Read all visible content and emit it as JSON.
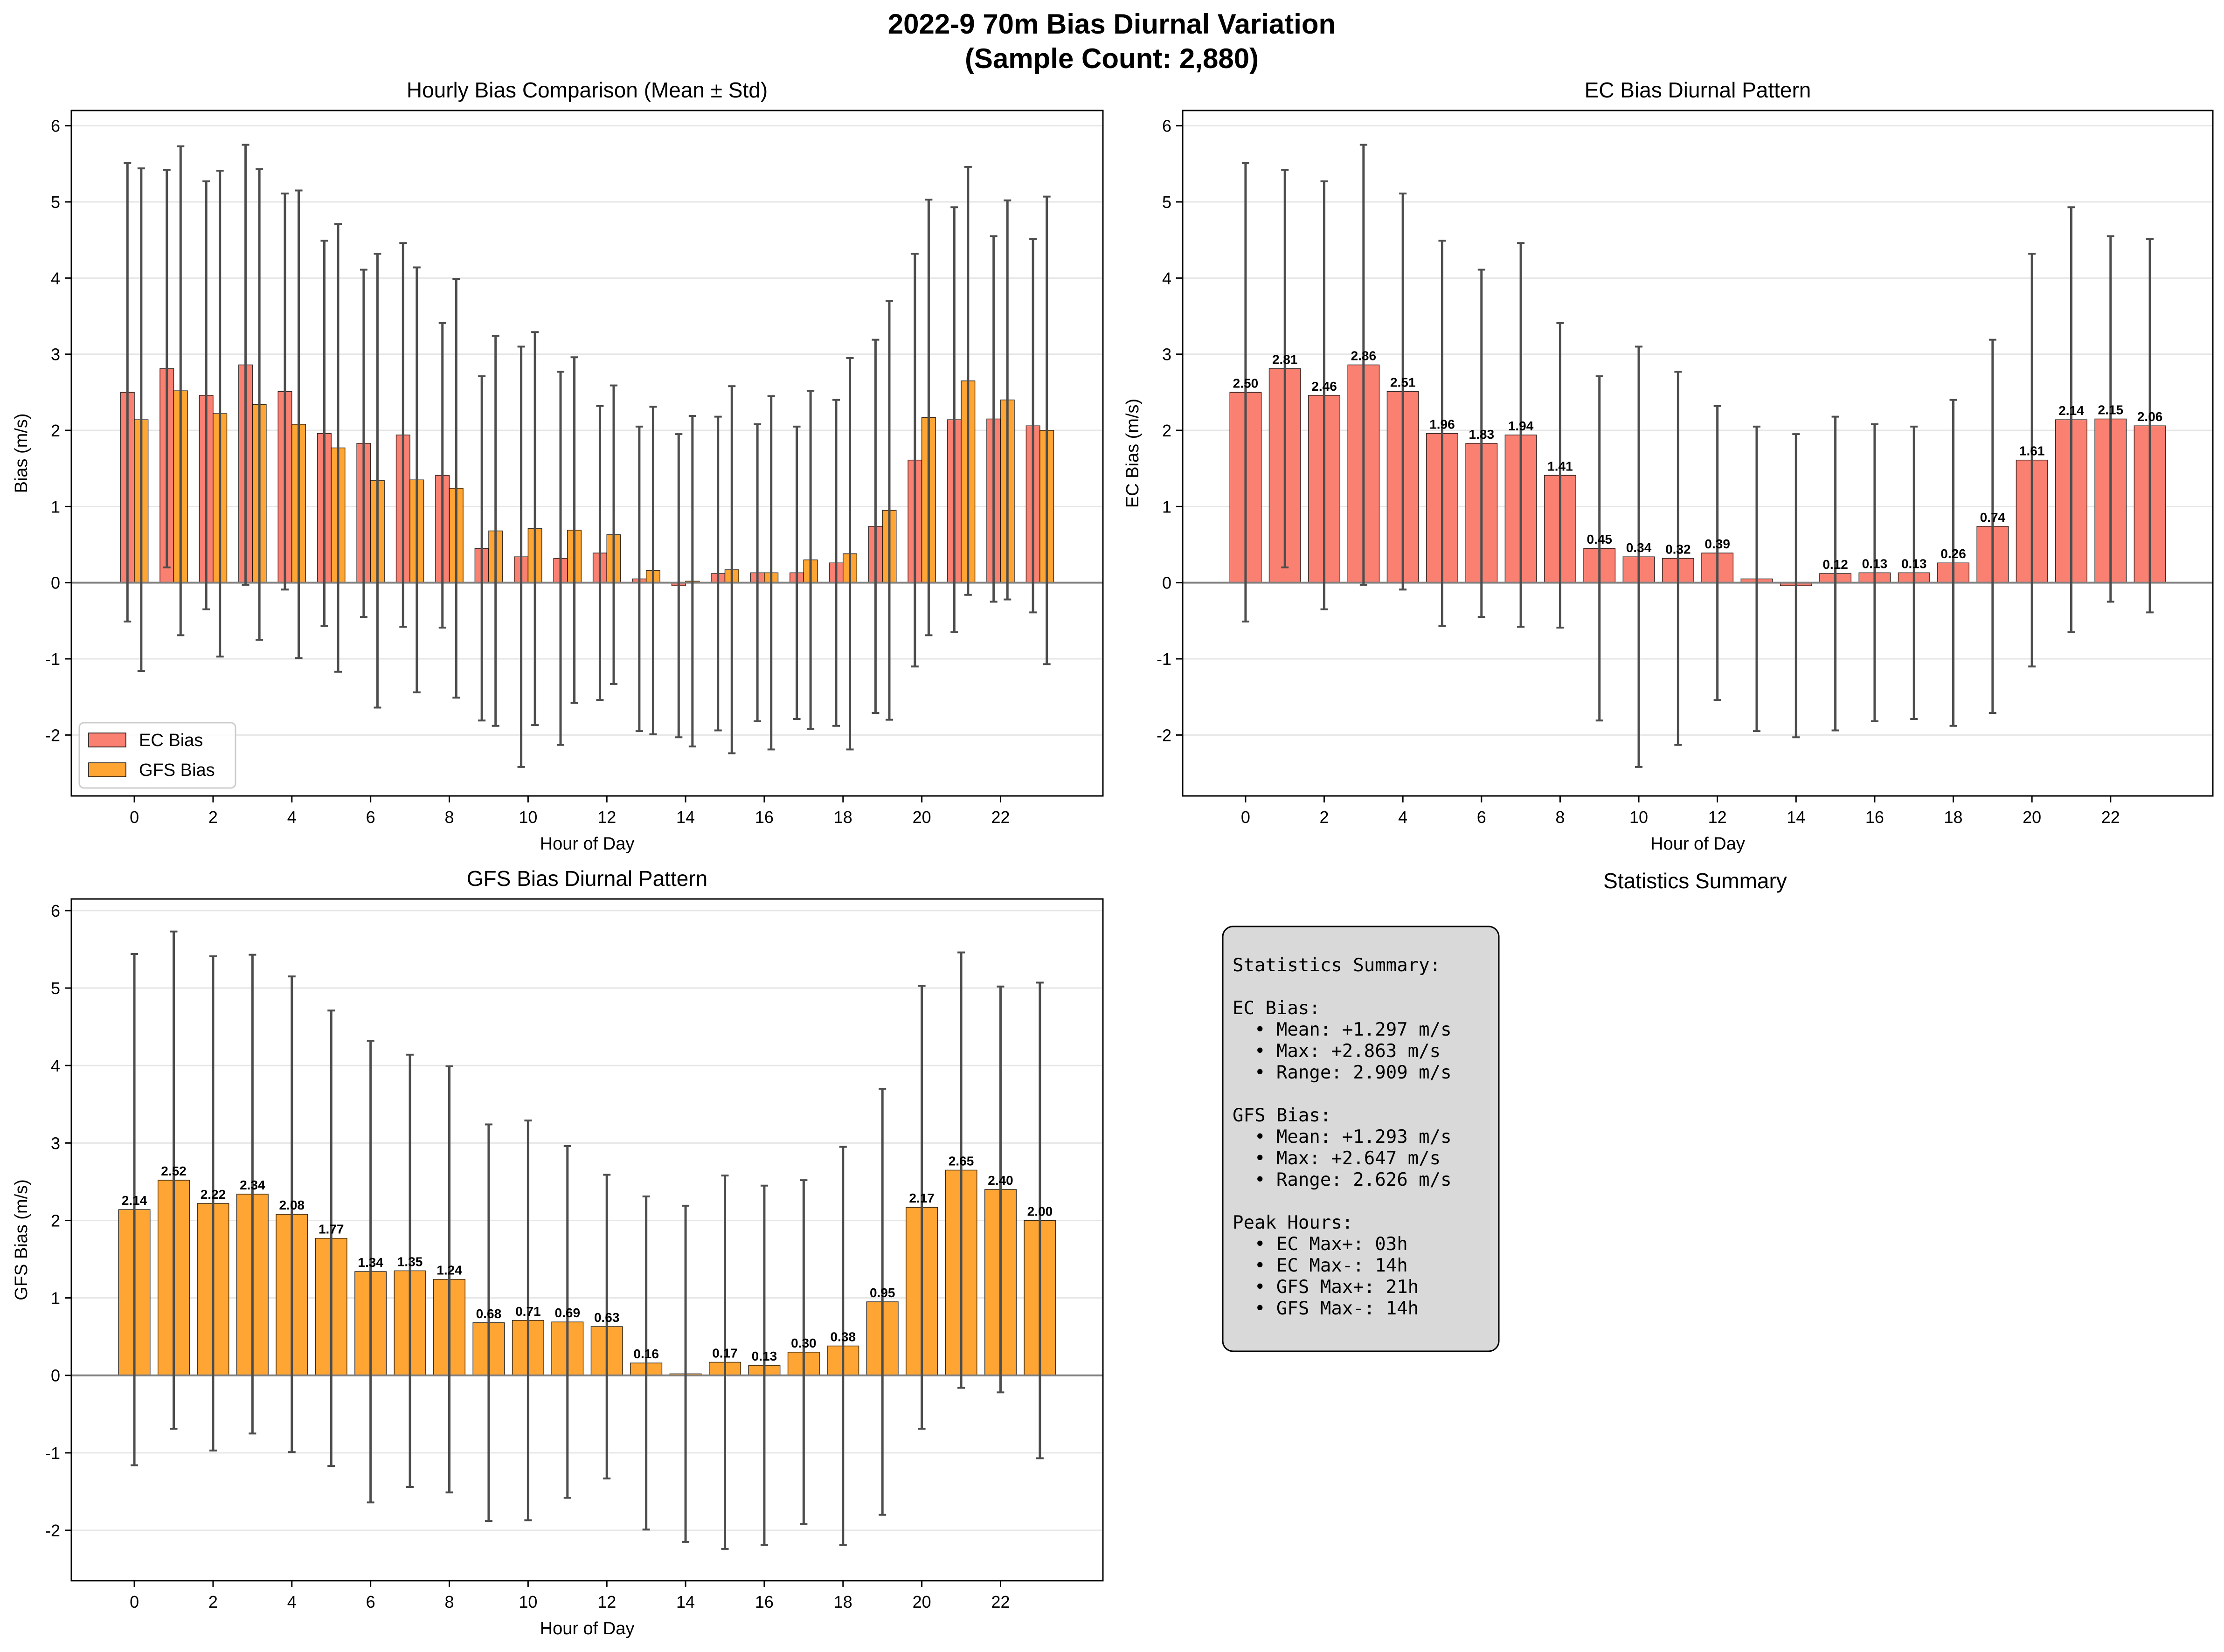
{
  "figure": {
    "title_line1": "2022-9 70m Bias Diurnal Variation",
    "title_line2": "(Sample Count: 2,880)"
  },
  "colors": {
    "ec": "#fa8072",
    "gfs": "#ffa533",
    "error_bar": "#4d4d4d",
    "zero_line": "#808080",
    "grid": "#e6e6e6",
    "summary_box": "#d9d9d9"
  },
  "chart_data": [
    {
      "type": "bar",
      "title": "Hourly Bias Comparison (Mean ± Std)",
      "xlabel": "Hour of Day",
      "ylabel": "Bias (m/s)",
      "xlim": [
        -1.6,
        24.6
      ],
      "ylim": [
        -2.8,
        6.2
      ],
      "xticks": [
        0,
        2,
        4,
        6,
        8,
        10,
        12,
        14,
        16,
        18,
        20,
        22
      ],
      "yticks": [
        -2,
        -1,
        0,
        1,
        2,
        3,
        4,
        5,
        6
      ],
      "grid": "y",
      "legend": "lower-left",
      "categories": [
        0,
        1,
        2,
        3,
        4,
        5,
        6,
        7,
        8,
        9,
        10,
        11,
        12,
        13,
        14,
        15,
        16,
        17,
        18,
        19,
        20,
        21,
        22,
        23
      ],
      "series": [
        {
          "name": "EC Bias",
          "color_key": "ec",
          "values": [
            2.5,
            2.81,
            2.46,
            2.86,
            2.51,
            1.96,
            1.83,
            1.94,
            1.41,
            0.45,
            0.34,
            0.32,
            0.39,
            0.05,
            -0.04,
            0.12,
            0.13,
            0.13,
            0.26,
            0.74,
            1.61,
            2.14,
            2.15,
            2.06
          ],
          "std": [
            3.01,
            2.61,
            2.81,
            2.89,
            2.6,
            2.53,
            2.28,
            2.52,
            2.0,
            2.26,
            2.76,
            2.45,
            1.93,
            2.0,
            1.99,
            2.06,
            1.95,
            1.92,
            2.14,
            2.45,
            2.71,
            2.79,
            2.4,
            2.45
          ]
        },
        {
          "name": "GFS Bias",
          "color_key": "gfs",
          "values": [
            2.14,
            2.52,
            2.22,
            2.34,
            2.08,
            1.77,
            1.34,
            1.35,
            1.24,
            0.68,
            0.71,
            0.69,
            0.63,
            0.16,
            0.02,
            0.17,
            0.13,
            0.3,
            0.38,
            0.95,
            2.17,
            2.65,
            2.4,
            2.0
          ],
          "std": [
            3.3,
            3.21,
            3.19,
            3.09,
            3.07,
            2.94,
            2.98,
            2.79,
            2.75,
            2.56,
            2.58,
            2.27,
            1.96,
            2.15,
            2.17,
            2.41,
            2.32,
            2.22,
            2.57,
            2.75,
            2.86,
            2.81,
            2.62,
            3.07
          ]
        }
      ]
    },
    {
      "type": "bar",
      "title": "EC Bias Diurnal Pattern",
      "xlabel": "Hour of Day",
      "ylabel": "EC Bias (m/s)",
      "xlim": [
        -1.6,
        24.6
      ],
      "ylim": [
        -2.8,
        6.2
      ],
      "xticks": [
        0,
        2,
        4,
        6,
        8,
        10,
        12,
        14,
        16,
        18,
        20,
        22
      ],
      "yticks": [
        -2,
        -1,
        0,
        1,
        2,
        3,
        4,
        5,
        6
      ],
      "grid": "y",
      "categories": [
        0,
        1,
        2,
        3,
        4,
        5,
        6,
        7,
        8,
        9,
        10,
        11,
        12,
        13,
        14,
        15,
        16,
        17,
        18,
        19,
        20,
        21,
        22,
        23
      ],
      "series": [
        {
          "color_key": "ec",
          "values": [
            2.5,
            2.81,
            2.46,
            2.86,
            2.51,
            1.96,
            1.83,
            1.94,
            1.41,
            0.45,
            0.34,
            0.32,
            0.39,
            0.05,
            -0.04,
            0.12,
            0.13,
            0.13,
            0.26,
            0.74,
            1.61,
            2.14,
            2.15,
            2.06
          ],
          "std": [
            3.01,
            2.61,
            2.81,
            2.89,
            2.6,
            2.53,
            2.28,
            2.52,
            2.0,
            2.26,
            2.76,
            2.45,
            1.93,
            2.0,
            1.99,
            2.06,
            1.95,
            1.92,
            2.14,
            2.45,
            2.71,
            2.79,
            2.4,
            2.45
          ],
          "labels": [
            "2.50",
            "2.81",
            "2.46",
            "2.86",
            "2.51",
            "1.96",
            "1.83",
            "1.94",
            "1.41",
            "0.45",
            "0.34",
            "0.32",
            "0.39",
            "",
            "",
            "0.12",
            "0.13",
            "0.13",
            "0.26",
            "0.74",
            "1.61",
            "2.14",
            "2.15",
            "2.06"
          ]
        }
      ]
    },
    {
      "type": "bar",
      "title": "GFS Bias Diurnal Pattern",
      "xlabel": "Hour of Day",
      "ylabel": "GFS Bias (m/s)",
      "xlim": [
        -1.6,
        24.6
      ],
      "ylim": [
        -2.65,
        6.15
      ],
      "xticks": [
        0,
        2,
        4,
        6,
        8,
        10,
        12,
        14,
        16,
        18,
        20,
        22
      ],
      "yticks": [
        -2,
        -1,
        0,
        1,
        2,
        3,
        4,
        5,
        6
      ],
      "grid": "y",
      "categories": [
        0,
        1,
        2,
        3,
        4,
        5,
        6,
        7,
        8,
        9,
        10,
        11,
        12,
        13,
        14,
        15,
        16,
        17,
        18,
        19,
        20,
        21,
        22,
        23
      ],
      "series": [
        {
          "color_key": "gfs",
          "values": [
            2.14,
            2.52,
            2.22,
            2.34,
            2.08,
            1.77,
            1.34,
            1.35,
            1.24,
            0.68,
            0.71,
            0.69,
            0.63,
            0.16,
            0.02,
            0.17,
            0.13,
            0.3,
            0.38,
            0.95,
            2.17,
            2.65,
            2.4,
            2.0
          ],
          "std": [
            3.3,
            3.21,
            3.19,
            3.09,
            3.07,
            2.94,
            2.98,
            2.79,
            2.75,
            2.56,
            2.58,
            2.27,
            1.96,
            2.15,
            2.17,
            2.41,
            2.32,
            2.22,
            2.57,
            2.75,
            2.86,
            2.81,
            2.62,
            3.07
          ],
          "labels": [
            "2.14",
            "2.52",
            "2.22",
            "2.34",
            "2.08",
            "1.77",
            "1.34",
            "1.35",
            "1.24",
            "0.68",
            "0.71",
            "0.69",
            "0.63",
            "0.16",
            "",
            "0.17",
            "0.13",
            "0.30",
            "0.38",
            "0.95",
            "2.17",
            "2.65",
            "2.40",
            "2.00"
          ]
        }
      ]
    }
  ],
  "summary": {
    "panel_title": "Statistics Summary",
    "lines": [
      "Statistics Summary:",
      "",
      "EC Bias:",
      "  • Mean: +1.297 m/s",
      "  • Max: +2.863 m/s",
      "  • Range: 2.909 m/s",
      "",
      "GFS Bias:",
      "  • Mean: +1.293 m/s",
      "  • Max: +2.647 m/s",
      "  • Range: 2.626 m/s",
      "",
      "Peak Hours:",
      "  • EC Max+: 03h",
      "  • EC Max-: 14h",
      "  • GFS Max+: 21h",
      "  • GFS Max-: 14h"
    ]
  }
}
